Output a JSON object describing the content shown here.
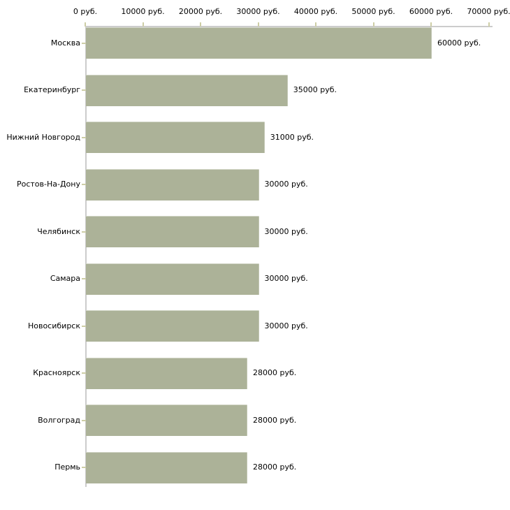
{
  "chart_data": {
    "type": "bar",
    "orientation": "horizontal",
    "title": "",
    "xlabel": "",
    "ylabel": "",
    "categories": [
      "Москва",
      "Екатеринбург",
      "Нижний Новгород",
      "Ростов-На-Дону",
      "Челябинск",
      "Самара",
      "Новосибирск",
      "Красноярск",
      "Волгоград",
      "Пермь"
    ],
    "values": [
      60000,
      35000,
      31000,
      30000,
      30000,
      30000,
      30000,
      28000,
      28000,
      28000
    ],
    "value_labels": [
      "60000 руб.",
      "35000 руб.",
      "31000 руб.",
      "30000 руб.",
      "30000 руб.",
      "30000 руб.",
      "30000 руб.",
      "28000 руб.",
      "28000 руб.",
      "28000 руб."
    ],
    "x_ticks": {
      "values": [
        0,
        10000,
        20000,
        30000,
        40000,
        50000,
        60000,
        70000
      ],
      "labels": [
        "0 руб.",
        "10000 руб.",
        "20000 руб.",
        "30000 руб.",
        "40000 руб.",
        "50000 руб.",
        "60000 руб.",
        "70000 руб."
      ]
    },
    "xlim": [
      0,
      70000
    ],
    "grid": false,
    "legend": false,
    "colors": {
      "bar": "#acb298",
      "axis_line": "#cccccc",
      "tick": "#cdcda6",
      "text": "#000000",
      "background": "#ffffff"
    }
  }
}
